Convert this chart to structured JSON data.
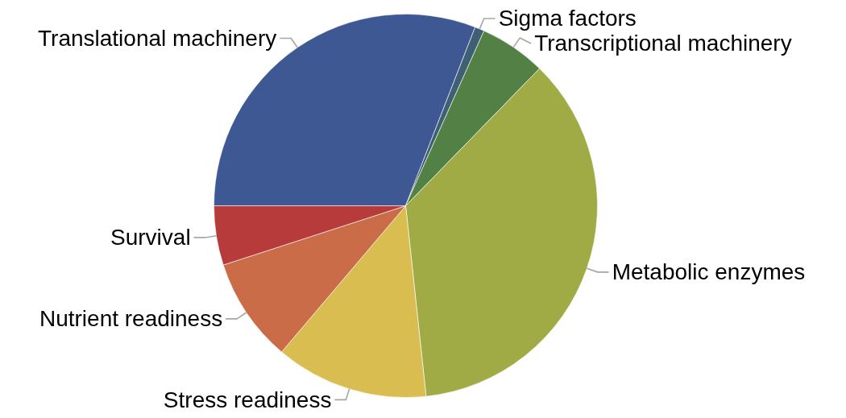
{
  "chart_data": {
    "type": "pie",
    "categories": [
      "Translational machinery",
      "Sigma factors",
      "Transcriptional machinery",
      "Metabolic enzymes",
      "Stress readiness",
      "Nutrient readiness",
      "Survival"
    ],
    "values": [
      30.9,
      0.8,
      5.6,
      36.0,
      12.9,
      8.8,
      5.0
    ],
    "colors": [
      "#3e5893",
      "#3e5f74",
      "#538145",
      "#a0ab45",
      "#d9bd50",
      "#c96c47",
      "#b83b3c"
    ]
  }
}
